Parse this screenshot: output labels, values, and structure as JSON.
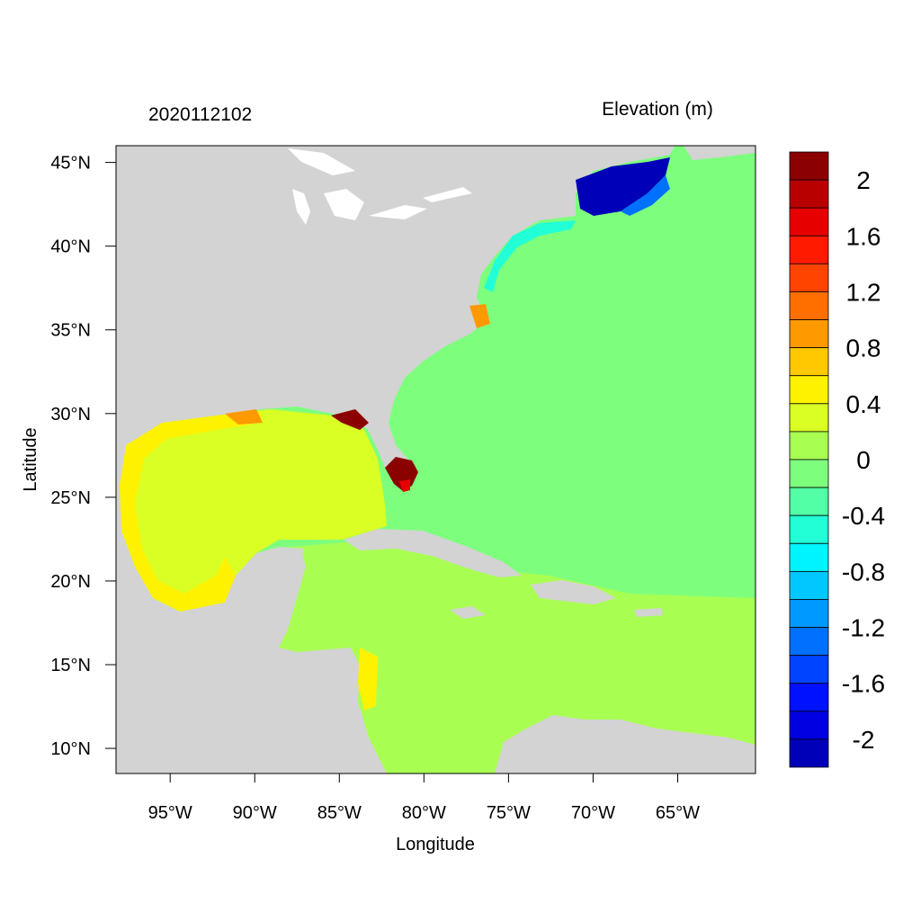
{
  "header": {
    "timestamp": "2020112102",
    "colorbar_title": "Elevation (m)"
  },
  "axes": {
    "xlabel": "Longitude",
    "ylabel": "Latitude",
    "lon_range": [
      -98.2,
      -60.4
    ],
    "lat_range": [
      8.5,
      46.0
    ],
    "x_ticks": [
      {
        "value": -95,
        "label": "95°W"
      },
      {
        "value": -90,
        "label": "90°W"
      },
      {
        "value": -85,
        "label": "85°W"
      },
      {
        "value": -80,
        "label": "80°W"
      },
      {
        "value": -75,
        "label": "75°W"
      },
      {
        "value": -70,
        "label": "70°W"
      },
      {
        "value": -65,
        "label": "65°W"
      }
    ],
    "y_ticks": [
      {
        "value": 45,
        "label": "45°N"
      },
      {
        "value": 40,
        "label": "40°N"
      },
      {
        "value": 35,
        "label": "35°N"
      },
      {
        "value": 30,
        "label": "30°N"
      },
      {
        "value": 25,
        "label": "25°N"
      },
      {
        "value": 20,
        "label": "20°N"
      },
      {
        "value": 15,
        "label": "15°N"
      },
      {
        "value": 10,
        "label": "10°N"
      }
    ]
  },
  "colorbar": {
    "levels_top_to_bottom": [
      2.2,
      2.0,
      1.8,
      1.6,
      1.4,
      1.2,
      1.0,
      0.8,
      0.6,
      0.4,
      0.2,
      0.0,
      -0.2,
      -0.4,
      -0.6,
      -0.8,
      -1.0,
      -1.2,
      -1.4,
      -1.6,
      -1.8,
      -2.0,
      -2.2
    ],
    "colors_top_to_bottom": [
      "#8b0000",
      "#b90000",
      "#e60000",
      "#ff1a00",
      "#ff4400",
      "#ff6f00",
      "#ff9900",
      "#ffc800",
      "#fff200",
      "#d9ff24",
      "#a8ff52",
      "#7dff7d",
      "#52ffa6",
      "#22ffd6",
      "#00f4ff",
      "#00c8ff",
      "#0099ff",
      "#0070ff",
      "#0044ff",
      "#0011ff",
      "#0000e0",
      "#0000b8"
    ],
    "tick_labels": [
      {
        "value": 2.0,
        "label": "2"
      },
      {
        "value": 1.6,
        "label": "1.6"
      },
      {
        "value": 1.2,
        "label": "1.2"
      },
      {
        "value": 0.8,
        "label": "0.8"
      },
      {
        "value": 0.4,
        "label": "0.4"
      },
      {
        "value": 0.0,
        "label": "0"
      },
      {
        "value": -0.4,
        "label": "-0.4"
      },
      {
        "value": -0.8,
        "label": "-0.8"
      },
      {
        "value": -1.2,
        "label": "-1.2"
      },
      {
        "value": -1.6,
        "label": "-1.6"
      },
      {
        "value": -2.0,
        "label": "-2"
      }
    ]
  },
  "map_colors": {
    "land": "#d3d3d3",
    "lakes": "#ffffff",
    "atlantic": "#7dff7d",
    "caribbean": "#a8ff52",
    "gulf": "#d9ff24",
    "gulf_coast": "#fff200",
    "gulf_of_maine": "#0000b8",
    "gulf_of_maine_edge": "#0070ff",
    "shelf": "#22ffd6",
    "florida_surge": "#8b0000",
    "surge_bright": "#e60000",
    "surge_orange": "#ff9900"
  }
}
